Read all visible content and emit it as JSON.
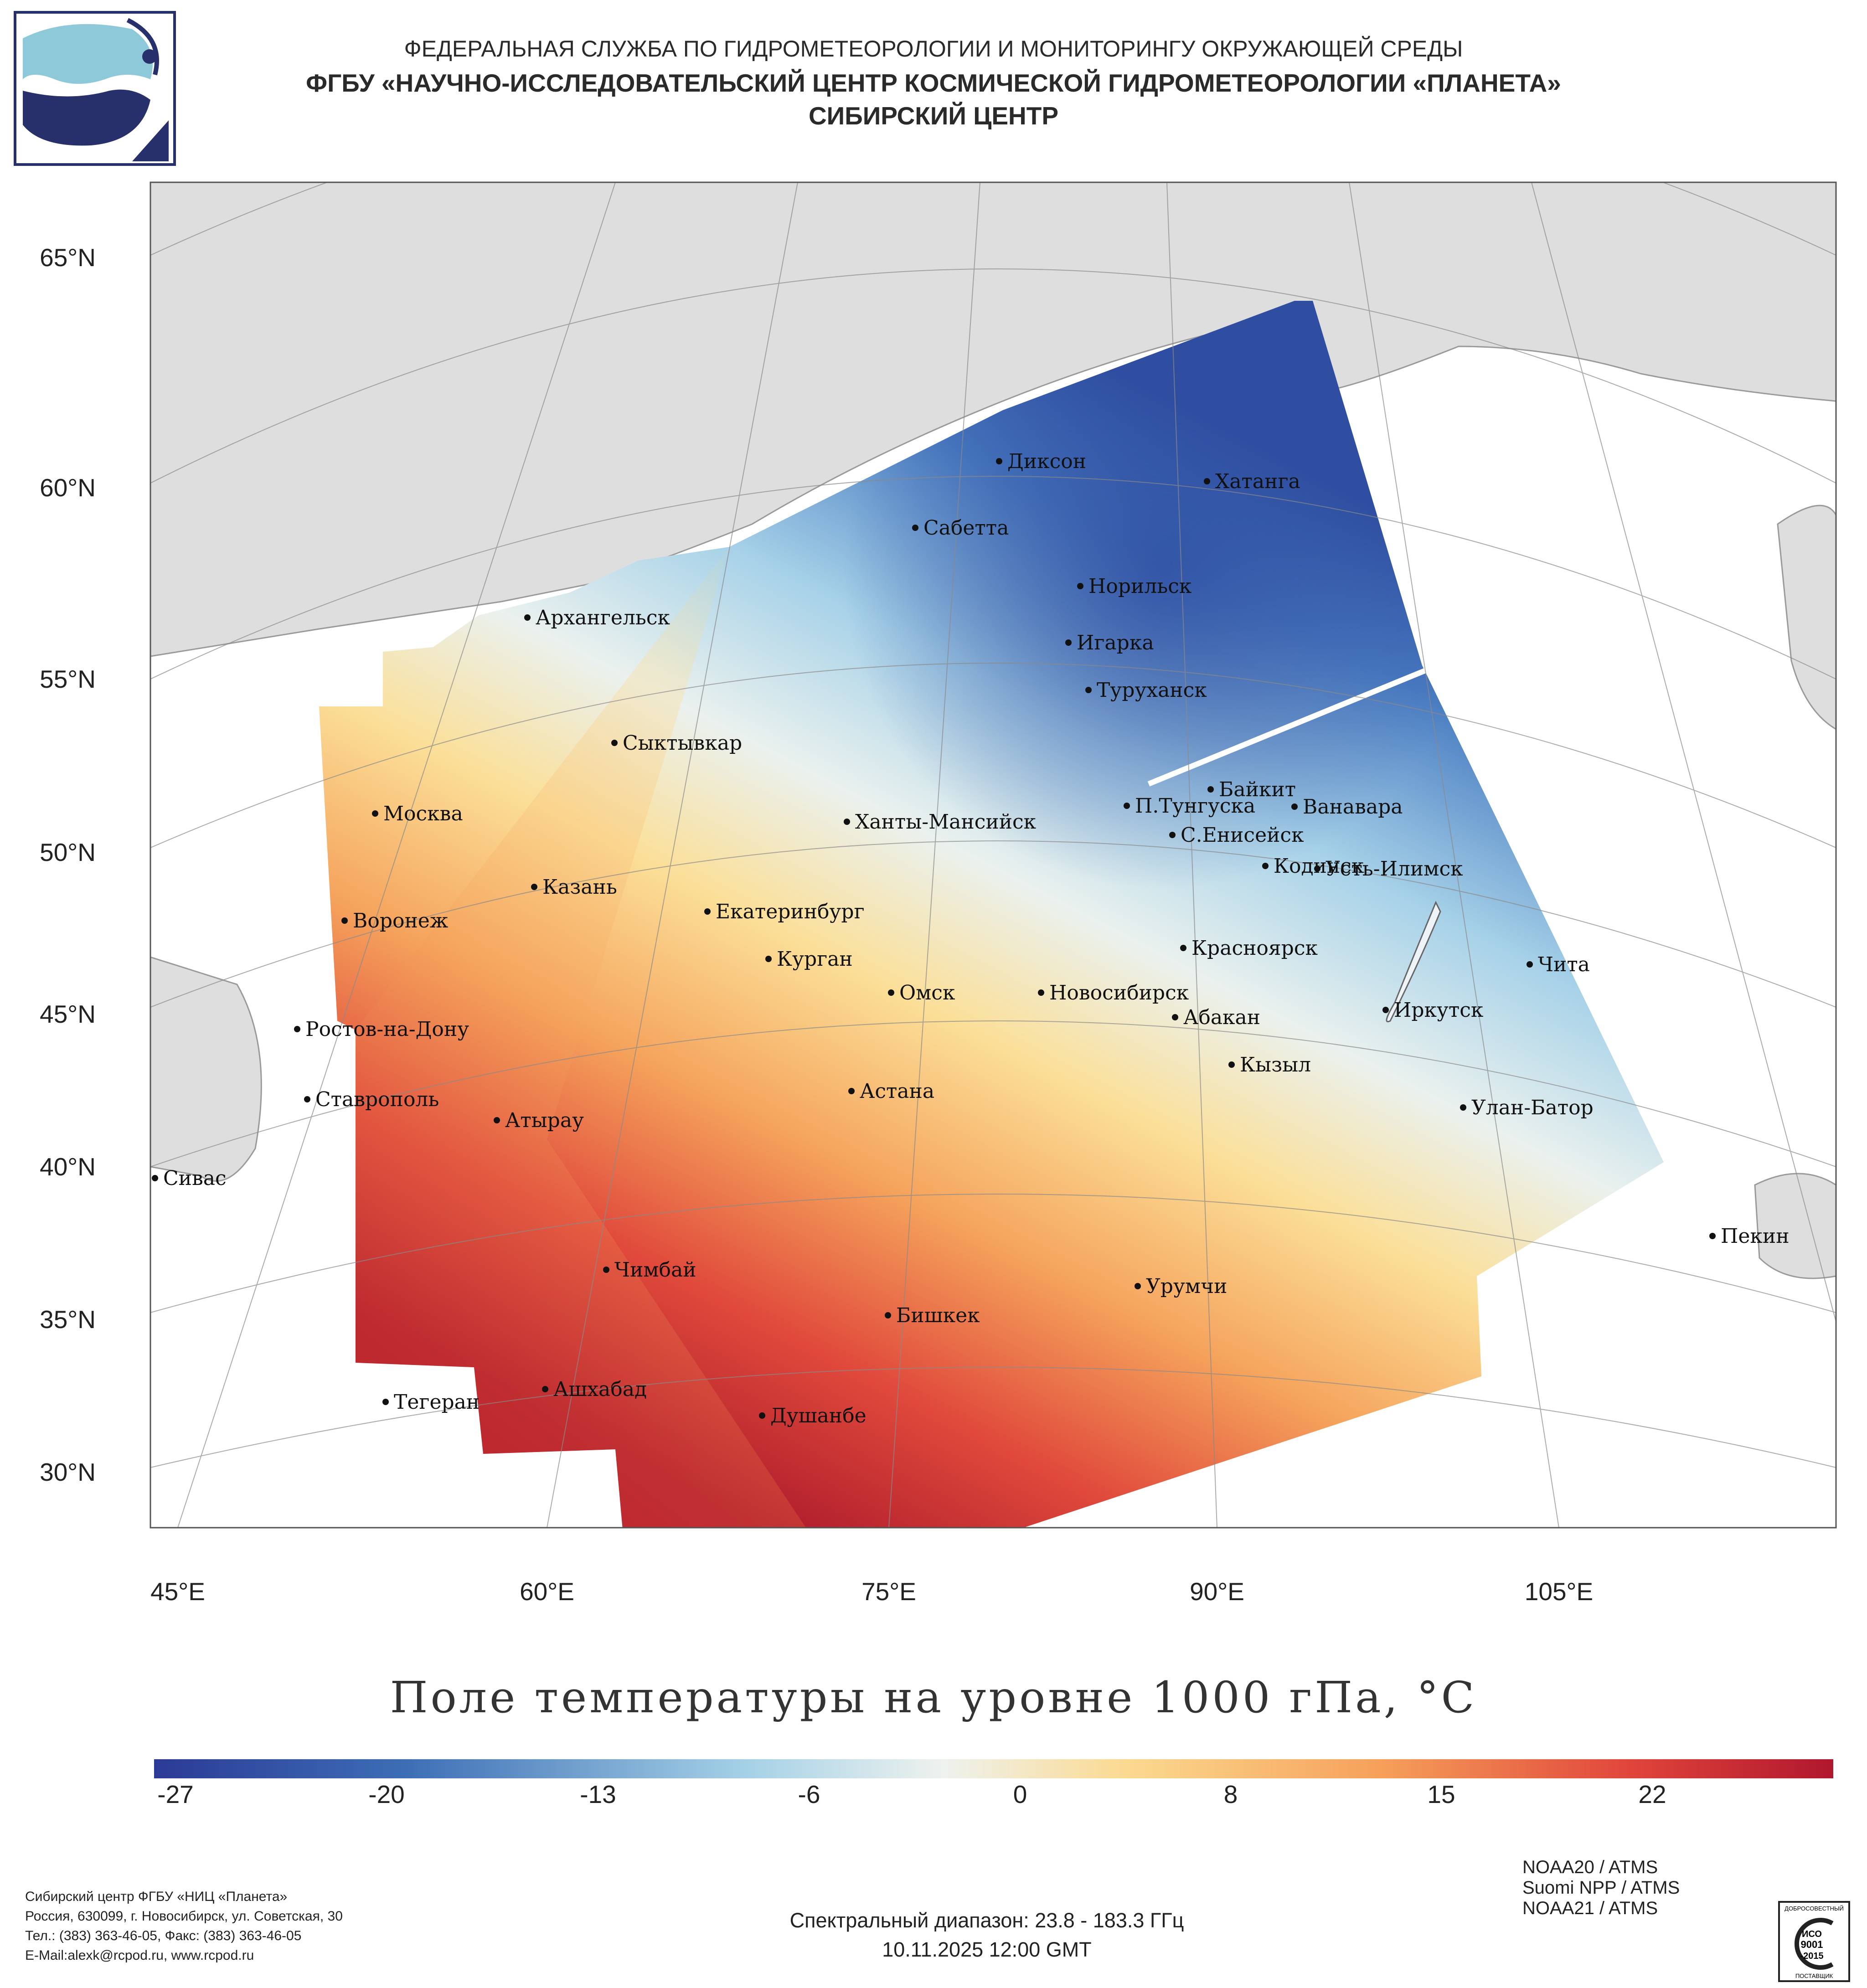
{
  "header": {
    "line1": "ФЕДЕРАЛЬНАЯ СЛУЖБА ПО ГИДРОМЕТЕОРОЛОГИИ И МОНИТОРИНГУ ОКРУЖАЮЩЕЙ СРЕДЫ",
    "line2": "ФГБУ «НАУЧНО-ИССЛЕДОВАТЕЛЬСКИЙ ЦЕНТР КОСМИЧЕСКОЙ ГИДРОМЕТЕОРОЛОГИИ «ПЛАНЕТА»",
    "line3": "СИБИРСКИЙ ЦЕНТР"
  },
  "map": {
    "lat_labels": [
      "65°N",
      "60°N",
      "55°N",
      "50°N",
      "45°N",
      "40°N",
      "35°N",
      "30°N"
    ],
    "lon_labels": [
      "45°E",
      "60°E",
      "75°E",
      "90°E",
      "105°E"
    ],
    "cities": [
      "Диксон",
      "Хатанга",
      "Сабетта",
      "Норильск",
      "Архангельск",
      "Игарка",
      "Туруханск",
      "Сыктывкар",
      "Байкит",
      "Москва",
      "П.Тунгуска",
      "Ванавара",
      "Ханты-Мансийск",
      "С.Енисейск",
      "Казань",
      "Кодинск",
      "Усть-Илимск",
      "Екатеринбург",
      "Воронеж",
      "Красноярск",
      "Курган",
      "Чита",
      "Омск",
      "Новосибирск",
      "Ростов-на-Дону",
      "Иркутск",
      "Абакан",
      "Кызыл",
      "Ставрополь",
      "Астана",
      "Улан-Батор",
      "Атырау",
      "Сивас",
      "Пекин",
      "Чимбай",
      "Урумчи",
      "Бишкек",
      "Ашхабад",
      "Тегеран",
      "Душанбе"
    ]
  },
  "legend": {
    "title": "Поле температуры на уровне 1000 гПа, °С",
    "ticks": [
      "-27",
      "-20",
      "-13",
      "-6",
      "0",
      "8",
      "15",
      "22"
    ],
    "colors": {
      "cold_deep": "#2f4ea1",
      "cold": "#4a7dc2",
      "cool": "#a6d1e8",
      "neutral": "#eaf1ee",
      "mild": "#fbdf98",
      "warm": "#f5a35c",
      "hot": "#e0493b",
      "hottest": "#b01d2c"
    }
  },
  "footer": {
    "org_lines": [
      "Сибирский центр ФГБУ «НИЦ «Планета»",
      "Россия, 630099, г. Новосибирск, ул. Советская, 30",
      "Тел.: (383) 363-46-05, Факс: (383) 363-46-05",
      "E-Mail:alexk@rcpod.ru, www.rcpod.ru"
    ],
    "spectral": "Спектральный диапазон: 23.8 - 183.3 ГГц",
    "datetime": "10.11.2025 12:00 GMT",
    "satellites": [
      "NOAA20 / ATMS",
      "Suomi NPP / ATMS",
      "NOAA21 / ATMS"
    ],
    "cert": {
      "top": "ДОБРОСОВЕСТНЫЙ",
      "line1": "ИСО",
      "line2": "9001",
      "line3": "-2015",
      "bottom": "ПОСТАВЩИК"
    }
  }
}
